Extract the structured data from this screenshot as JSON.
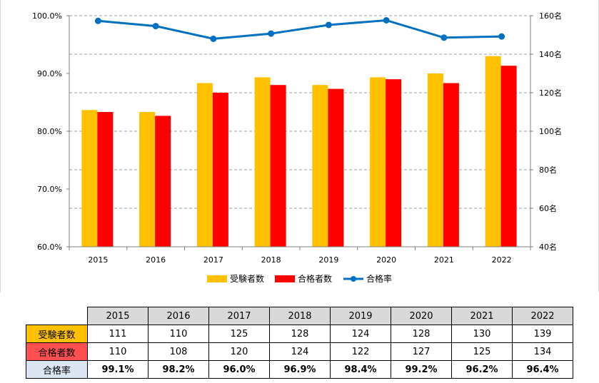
{
  "chart_data": {
    "type": "bar+line",
    "categories": [
      "2015",
      "2016",
      "2017",
      "2018",
      "2019",
      "2020",
      "2021",
      "2022"
    ],
    "series": [
      {
        "name": "受験者数",
        "kind": "bar",
        "axis": "right",
        "color": "#ffc000",
        "values": [
          111,
          110,
          125,
          128,
          124,
          128,
          130,
          139
        ]
      },
      {
        "name": "合格者数",
        "kind": "bar",
        "axis": "right",
        "color": "#ff0000",
        "values": [
          110,
          108,
          120,
          124,
          122,
          127,
          125,
          134
        ]
      },
      {
        "name": "合格率",
        "kind": "line",
        "axis": "left",
        "color": "#0070c0",
        "values": [
          99.1,
          98.2,
          96.0,
          96.9,
          98.4,
          99.2,
          96.2,
          96.4
        ]
      }
    ],
    "left_axis": {
      "ylim": [
        60,
        100
      ],
      "ticks": [
        "60.0%",
        "70.0%",
        "80.0%",
        "90.0%",
        "100.0%"
      ]
    },
    "right_axis": {
      "ylim": [
        40,
        160
      ],
      "ticks": [
        "40名",
        "60名",
        "80名",
        "100名",
        "120名",
        "140名",
        "160名"
      ]
    },
    "grid": "dashed horizontal",
    "legend": "bottom"
  },
  "table": {
    "years": [
      "2015",
      "2016",
      "2017",
      "2018",
      "2019",
      "2020",
      "2021",
      "2022"
    ],
    "rows": [
      {
        "label": "受験者数",
        "bg": "#ffc000",
        "values": [
          "111",
          "110",
          "125",
          "128",
          "124",
          "128",
          "130",
          "139"
        ]
      },
      {
        "label": "合格者数",
        "bg": "#ff5050",
        "values": [
          "110",
          "108",
          "120",
          "124",
          "122",
          "127",
          "125",
          "134"
        ]
      },
      {
        "label": "合格率",
        "bg": "#dae6f2",
        "values": [
          "99.1%",
          "98.2%",
          "96.0%",
          "96.9%",
          "98.4%",
          "99.2%",
          "96.2%",
          "96.4%"
        ]
      }
    ]
  }
}
